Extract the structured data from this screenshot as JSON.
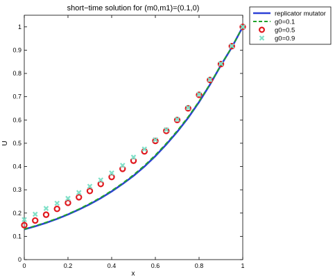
{
  "chart_data": {
    "type": "line",
    "title": "short−time solution for (m0,m1)=(0.1,0)",
    "xlabel": "x",
    "ylabel": "U",
    "xlim": [
      0,
      1
    ],
    "ylim": [
      0,
      1.05
    ],
    "xticks": [
      "0",
      "0.2",
      "0.4",
      "0.6",
      "0.8",
      "1"
    ],
    "yticks": [
      "0",
      "0.1",
      "0.2",
      "0.3",
      "0.4",
      "0.5",
      "0.6",
      "0.7",
      "0.8",
      "0.9",
      "1"
    ],
    "grid": false,
    "legend_position": "outside-top-right",
    "x": [
      0,
      0.05,
      0.1,
      0.15,
      0.2,
      0.25,
      0.3,
      0.35,
      0.4,
      0.45,
      0.5,
      0.55,
      0.6,
      0.65,
      0.7,
      0.75,
      0.8,
      0.85,
      0.9,
      0.95,
      1.0
    ],
    "series": [
      {
        "name": "replicator mutator",
        "style": "solid-line",
        "color": "#2b3fd6",
        "values": [
          0.13,
          0.143,
          0.158,
          0.175,
          0.194,
          0.215,
          0.238,
          0.264,
          0.293,
          0.325,
          0.36,
          0.4,
          0.445,
          0.495,
          0.549,
          0.609,
          0.677,
          0.752,
          0.835,
          0.912,
          1.0
        ]
      },
      {
        "name": "g0=0.1",
        "style": "dashed-line",
        "color": "#1fa32a",
        "values": [
          0.131,
          0.145,
          0.16,
          0.177,
          0.196,
          0.217,
          0.241,
          0.267,
          0.296,
          0.328,
          0.364,
          0.404,
          0.449,
          0.499,
          0.553,
          0.613,
          0.68,
          0.754,
          0.836,
          0.913,
          1.0
        ]
      },
      {
        "name": "g0=0.5",
        "style": "circle-markers",
        "color": "#e0191f",
        "values": [
          0.148,
          0.168,
          0.193,
          0.218,
          0.244,
          0.268,
          0.295,
          0.325,
          0.355,
          0.39,
          0.425,
          0.465,
          0.51,
          0.553,
          0.6,
          0.65,
          0.708,
          0.772,
          0.84,
          0.917,
          1.0
        ]
      },
      {
        "name": "g0=0.9",
        "style": "x-markers",
        "color": "#7fe0c8",
        "values": [
          0.172,
          0.195,
          0.22,
          0.242,
          0.263,
          0.288,
          0.315,
          0.342,
          0.372,
          0.405,
          0.44,
          0.475,
          0.515,
          0.558,
          0.603,
          0.653,
          0.71,
          0.774,
          0.842,
          0.918,
          1.0
        ]
      }
    ]
  }
}
